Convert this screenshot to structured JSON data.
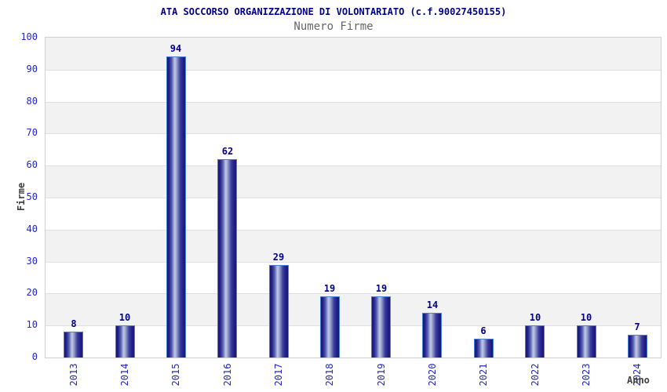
{
  "chart_data": {
    "type": "bar",
    "title": "ATA SOCCORSO ORGANIZZAZIONE DI VOLONTARIATO (c.f.90027450155)",
    "subtitle": "Numero Firme",
    "xlabel": "Anno",
    "ylabel": "Firme",
    "categories": [
      "2013",
      "2014",
      "2015",
      "2016",
      "2017",
      "2018",
      "2019",
      "2020",
      "2021",
      "2022",
      "2023",
      "2024"
    ],
    "values": [
      8,
      10,
      94,
      62,
      29,
      19,
      19,
      14,
      6,
      10,
      10,
      7
    ],
    "ylim": [
      0,
      100
    ],
    "yticks": [
      0,
      10,
      20,
      30,
      40,
      50,
      60,
      70,
      80,
      90,
      100
    ],
    "grid": "horizontal gridlines with alternating shaded bands",
    "legend": "none",
    "colors": {
      "title": "#00008b",
      "subtitle": "#666666",
      "tick_label": "#2525cc",
      "value_label": "#00008b",
      "axis_title": "#404040",
      "band_shaded": "#f2f2f2",
      "band_plain": "#ffffff",
      "gridline": "#e0e0e0",
      "plot_border": "#d0d0d0",
      "bar_border": "#4a7fd9",
      "bar_dark": "#191970",
      "bar_light": "#c2c9e6"
    }
  }
}
